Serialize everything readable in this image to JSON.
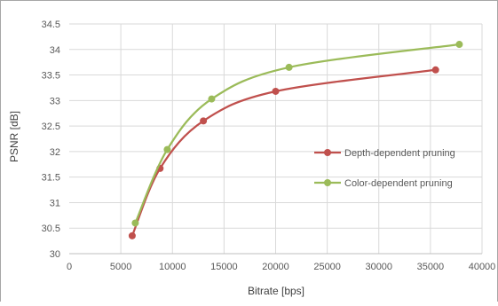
{
  "chart_data": {
    "type": "line",
    "xlabel": "Bitrate [bps]",
    "ylabel": "PSNR [dB]",
    "xlim": [
      0,
      40000
    ],
    "ylim": [
      30,
      34.5
    ],
    "x_ticks": [
      0,
      5000,
      10000,
      15000,
      20000,
      25000,
      30000,
      35000,
      40000
    ],
    "y_ticks": [
      30,
      30.5,
      31,
      31.5,
      32,
      32.5,
      33,
      33.5,
      34,
      34.5
    ],
    "x_tick_labels": [
      "0",
      "5000",
      "10000",
      "15000",
      "20000",
      "25000",
      "30000",
      "35000",
      "40000"
    ],
    "y_tick_labels": [
      "30",
      "30.5",
      "31",
      "31.5",
      "32",
      "32.5",
      "33",
      "33.5",
      "34",
      "34.5"
    ],
    "grid": true,
    "legend_position": "right",
    "series": [
      {
        "name": "Depth-dependent pruning",
        "color": "#c0504d",
        "x": [
          6100,
          8800,
          13000,
          20000,
          35500
        ],
        "y": [
          30.35,
          31.67,
          32.6,
          33.18,
          33.6
        ]
      },
      {
        "name": "Color-dependent pruning",
        "color": "#9bbb59",
        "x": [
          6400,
          9500,
          13800,
          21300,
          37800
        ],
        "y": [
          30.6,
          32.04,
          33.03,
          33.65,
          34.1
        ]
      }
    ]
  }
}
